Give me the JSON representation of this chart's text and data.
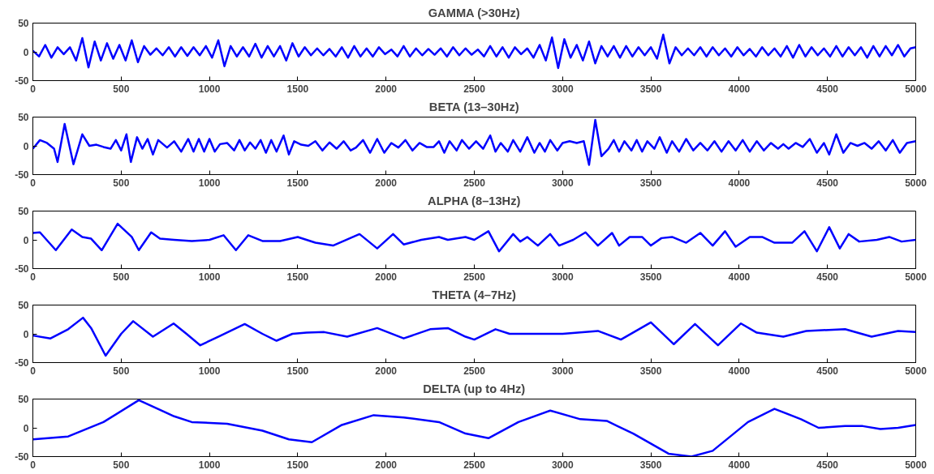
{
  "chart_data": [
    {
      "type": "line",
      "title": "GAMMA (>30Hz)",
      "color": "#0000ff",
      "xlim": [
        0,
        5000
      ],
      "ylim": [
        -50,
        50
      ],
      "xticks": [
        0,
        500,
        1000,
        1500,
        2000,
        2500,
        3000,
        3500,
        4000,
        4500,
        5000
      ],
      "yticks": [
        -50,
        0,
        50
      ],
      "grid": false,
      "x": [
        0,
        35,
        70,
        105,
        140,
        175,
        210,
        245,
        280,
        315,
        350,
        385,
        420,
        455,
        490,
        525,
        560,
        595,
        630,
        665,
        700,
        735,
        770,
        805,
        840,
        875,
        910,
        945,
        980,
        1015,
        1050,
        1085,
        1120,
        1155,
        1190,
        1225,
        1260,
        1295,
        1330,
        1365,
        1400,
        1435,
        1470,
        1505,
        1540,
        1575,
        1610,
        1645,
        1680,
        1715,
        1750,
        1785,
        1820,
        1855,
        1890,
        1925,
        1960,
        1995,
        2030,
        2065,
        2100,
        2135,
        2170,
        2205,
        2240,
        2275,
        2310,
        2345,
        2380,
        2415,
        2450,
        2485,
        2520,
        2555,
        2590,
        2625,
        2660,
        2695,
        2730,
        2765,
        2800,
        2835,
        2870,
        2905,
        2940,
        2975,
        3010,
        3045,
        3080,
        3115,
        3150,
        3185,
        3220,
        3255,
        3290,
        3325,
        3360,
        3395,
        3430,
        3465,
        3500,
        3535,
        3570,
        3605,
        3640,
        3675,
        3710,
        3745,
        3780,
        3815,
        3850,
        3885,
        3920,
        3955,
        3990,
        4025,
        4060,
        4095,
        4130,
        4165,
        4200,
        4235,
        4270,
        4305,
        4340,
        4375,
        4410,
        4445,
        4480,
        4515,
        4550,
        4585,
        4620,
        4655,
        4690,
        4725,
        4760,
        4795,
        4830,
        4865,
        4900,
        4935,
        4970,
        5000
      ],
      "values": [
        2,
        -8,
        12,
        -10,
        8,
        -4,
        8,
        -15,
        24,
        -27,
        18,
        -15,
        15,
        -12,
        12,
        -15,
        20,
        -18,
        10,
        -5,
        6,
        -6,
        8,
        -8,
        8,
        -7,
        8,
        -6,
        10,
        -10,
        20,
        -25,
        10,
        -8,
        8,
        -8,
        14,
        -10,
        10,
        -8,
        10,
        -15,
        15,
        -8,
        8,
        -6,
        6,
        -6,
        5,
        -8,
        8,
        -10,
        10,
        -8,
        6,
        -8,
        8,
        -4,
        4,
        -8,
        10,
        -8,
        6,
        -6,
        5,
        -5,
        6,
        -8,
        8,
        -6,
        6,
        -5,
        4,
        -8,
        10,
        -8,
        8,
        -10,
        8,
        -4,
        6,
        -10,
        12,
        -15,
        25,
        -28,
        22,
        -10,
        12,
        -15,
        18,
        -20,
        10,
        -8,
        10,
        -10,
        10,
        -8,
        8,
        -6,
        8,
        -12,
        30,
        -20,
        8,
        -6,
        6,
        -6,
        8,
        -8,
        8,
        -6,
        6,
        -8,
        8,
        -6,
        5,
        -8,
        8,
        -6,
        6,
        -8,
        10,
        -10,
        12,
        -8,
        8,
        -6,
        6,
        -8,
        10,
        -8,
        8,
        -6,
        8,
        -10,
        10,
        -8,
        10,
        -6,
        12,
        -8,
        6,
        8
      ]
    },
    {
      "type": "line",
      "title": "BETA (13–30Hz)",
      "color": "#0000ff",
      "xlim": [
        0,
        5000
      ],
      "ylim": [
        -50,
        50
      ],
      "xticks": [
        0,
        500,
        1000,
        1500,
        2000,
        2500,
        3000,
        3500,
        4000,
        4500,
        5000
      ],
      "yticks": [
        -50,
        0,
        50
      ],
      "grid": false,
      "x": [
        0,
        40,
        80,
        120,
        140,
        180,
        230,
        280,
        320,
        360,
        400,
        440,
        470,
        500,
        530,
        555,
        590,
        620,
        650,
        680,
        710,
        760,
        800,
        840,
        880,
        910,
        940,
        970,
        1000,
        1030,
        1060,
        1100,
        1140,
        1170,
        1200,
        1230,
        1260,
        1290,
        1320,
        1350,
        1380,
        1420,
        1450,
        1480,
        1520,
        1560,
        1600,
        1640,
        1680,
        1720,
        1760,
        1800,
        1830,
        1870,
        1910,
        1950,
        1990,
        2030,
        2070,
        2110,
        2150,
        2190,
        2230,
        2270,
        2300,
        2330,
        2360,
        2400,
        2430,
        2470,
        2510,
        2550,
        2590,
        2620,
        2650,
        2690,
        2720,
        2760,
        2800,
        2840,
        2870,
        2900,
        2930,
        2970,
        3000,
        3040,
        3080,
        3120,
        3150,
        3185,
        3220,
        3260,
        3290,
        3320,
        3350,
        3390,
        3420,
        3450,
        3480,
        3520,
        3550,
        3590,
        3620,
        3660,
        3700,
        3740,
        3780,
        3820,
        3860,
        3900,
        3940,
        3980,
        4020,
        4060,
        4100,
        4140,
        4180,
        4220,
        4250,
        4280,
        4320,
        4360,
        4400,
        4440,
        4480,
        4510,
        4550,
        4590,
        4630,
        4670,
        4710,
        4750,
        4790,
        4830,
        4870,
        4910,
        4950,
        5000
      ],
      "values": [
        -5,
        10,
        5,
        -5,
        -28,
        38,
        -32,
        20,
        0,
        2,
        -2,
        -5,
        10,
        -8,
        20,
        -28,
        15,
        -5,
        12,
        -15,
        10,
        -3,
        8,
        -10,
        12,
        -10,
        12,
        -10,
        12,
        -10,
        3,
        5,
        -8,
        10,
        -8,
        6,
        -5,
        10,
        -12,
        10,
        -10,
        18,
        -15,
        8,
        2,
        0,
        8,
        -8,
        6,
        -5,
        8,
        -8,
        -3,
        10,
        -12,
        12,
        -12,
        5,
        -3,
        10,
        -8,
        5,
        -2,
        -2,
        8,
        -12,
        8,
        -8,
        10,
        -5,
        8,
        -5,
        18,
        -10,
        5,
        -10,
        10,
        -10,
        15,
        -12,
        5,
        -10,
        10,
        -8,
        5,
        8,
        5,
        8,
        -33,
        45,
        -18,
        -5,
        10,
        -10,
        8,
        -8,
        10,
        -10,
        8,
        -5,
        15,
        -12,
        8,
        -10,
        12,
        -8,
        5,
        -8,
        8,
        -10,
        8,
        -8,
        10,
        -10,
        8,
        -8,
        5,
        -5,
        3,
        -5,
        5,
        -2,
        12,
        -12,
        5,
        -15,
        20,
        -12,
        5,
        0,
        5,
        -5,
        8,
        -8,
        10,
        -12,
        5,
        8
      ]
    },
    {
      "type": "line",
      "title": "ALPHA (8–13Hz)",
      "color": "#0000ff",
      "xlim": [
        0,
        5000
      ],
      "ylim": [
        -50,
        50
      ],
      "xticks": [
        0,
        500,
        1000,
        1500,
        2000,
        2500,
        3000,
        3500,
        4000,
        4500,
        5000
      ],
      "yticks": [
        -50,
        0,
        50
      ],
      "grid": false,
      "x": [
        0,
        40,
        130,
        220,
        280,
        330,
        390,
        480,
        560,
        600,
        670,
        720,
        800,
        900,
        1000,
        1080,
        1150,
        1220,
        1300,
        1400,
        1500,
        1600,
        1700,
        1850,
        1950,
        2040,
        2100,
        2200,
        2300,
        2350,
        2450,
        2500,
        2580,
        2640,
        2720,
        2760,
        2800,
        2860,
        2930,
        2980,
        3060,
        3130,
        3200,
        3280,
        3320,
        3380,
        3450,
        3500,
        3560,
        3620,
        3700,
        3780,
        3850,
        3920,
        3980,
        4060,
        4130,
        4200,
        4300,
        4370,
        4440,
        4510,
        4570,
        4620,
        4680,
        4780,
        4850,
        4920,
        5000
      ],
      "values": [
        12,
        13,
        -18,
        18,
        5,
        2,
        -18,
        28,
        5,
        -18,
        13,
        2,
        0,
        -2,
        0,
        8,
        -18,
        8,
        -2,
        -2,
        5,
        -5,
        -10,
        10,
        -15,
        10,
        -8,
        0,
        5,
        0,
        5,
        0,
        15,
        -20,
        10,
        -3,
        5,
        -10,
        10,
        -10,
        0,
        13,
        -10,
        12,
        -10,
        5,
        5,
        -10,
        3,
        5,
        -5,
        12,
        -10,
        15,
        -12,
        5,
        5,
        -5,
        -5,
        15,
        -20,
        22,
        -15,
        10,
        -3,
        0,
        5,
        -3,
        0
      ]
    },
    {
      "type": "line",
      "title": "THETA (4–7Hz)",
      "color": "#0000ff",
      "xlim": [
        0,
        5000
      ],
      "ylim": [
        -50,
        50
      ],
      "xticks": [
        0,
        500,
        1000,
        1500,
        2000,
        2500,
        3000,
        3500,
        4000,
        4500,
        5000
      ],
      "yticks": [
        -50,
        0,
        50
      ],
      "grid": false,
      "x": [
        0,
        100,
        200,
        284,
        330,
        412,
        500,
        568,
        680,
        797,
        870,
        948,
        1050,
        1200,
        1300,
        1380,
        1470,
        1550,
        1650,
        1780,
        1950,
        2100,
        2250,
        2350,
        2450,
        2500,
        2620,
        2700,
        2800,
        3000,
        3200,
        3330,
        3500,
        3630,
        3750,
        3880,
        4010,
        4100,
        4250,
        4380,
        4600,
        4750,
        4900,
        5000
      ],
      "values": [
        -3,
        -8,
        8,
        28,
        10,
        -38,
        0,
        22,
        -5,
        18,
        0,
        -20,
        -5,
        17,
        0,
        -12,
        0,
        2,
        3,
        -5,
        10,
        -8,
        8,
        10,
        -5,
        -10,
        8,
        0,
        0,
        0,
        5,
        -10,
        20,
        -18,
        17,
        -20,
        18,
        2,
        -5,
        5,
        8,
        -5,
        5,
        3
      ]
    },
    {
      "type": "line",
      "title": "DELTA (up to 4Hz)",
      "color": "#0000ff",
      "xlim": [
        0,
        5000
      ],
      "ylim": [
        -50,
        50
      ],
      "xticks": [
        0,
        500,
        1000,
        1500,
        2000,
        2500,
        3000,
        3500,
        4000,
        4500,
        5000
      ],
      "yticks": [
        -50,
        0,
        50
      ],
      "grid": false,
      "x": [
        0,
        200,
        400,
        600,
        800,
        900,
        1100,
        1300,
        1450,
        1580,
        1750,
        1930,
        2100,
        2300,
        2450,
        2580,
        2750,
        2930,
        3100,
        3250,
        3400,
        3600,
        3730,
        3850,
        4050,
        4200,
        4350,
        4450,
        4600,
        4700,
        4800,
        4900,
        5000
      ],
      "values": [
        -20,
        -15,
        10,
        48,
        20,
        10,
        7,
        -5,
        -20,
        -25,
        5,
        22,
        18,
        10,
        -10,
        -18,
        10,
        30,
        15,
        12,
        -10,
        -45,
        -50,
        -40,
        10,
        33,
        15,
        0,
        3,
        3,
        -2,
        0,
        5
      ]
    }
  ]
}
